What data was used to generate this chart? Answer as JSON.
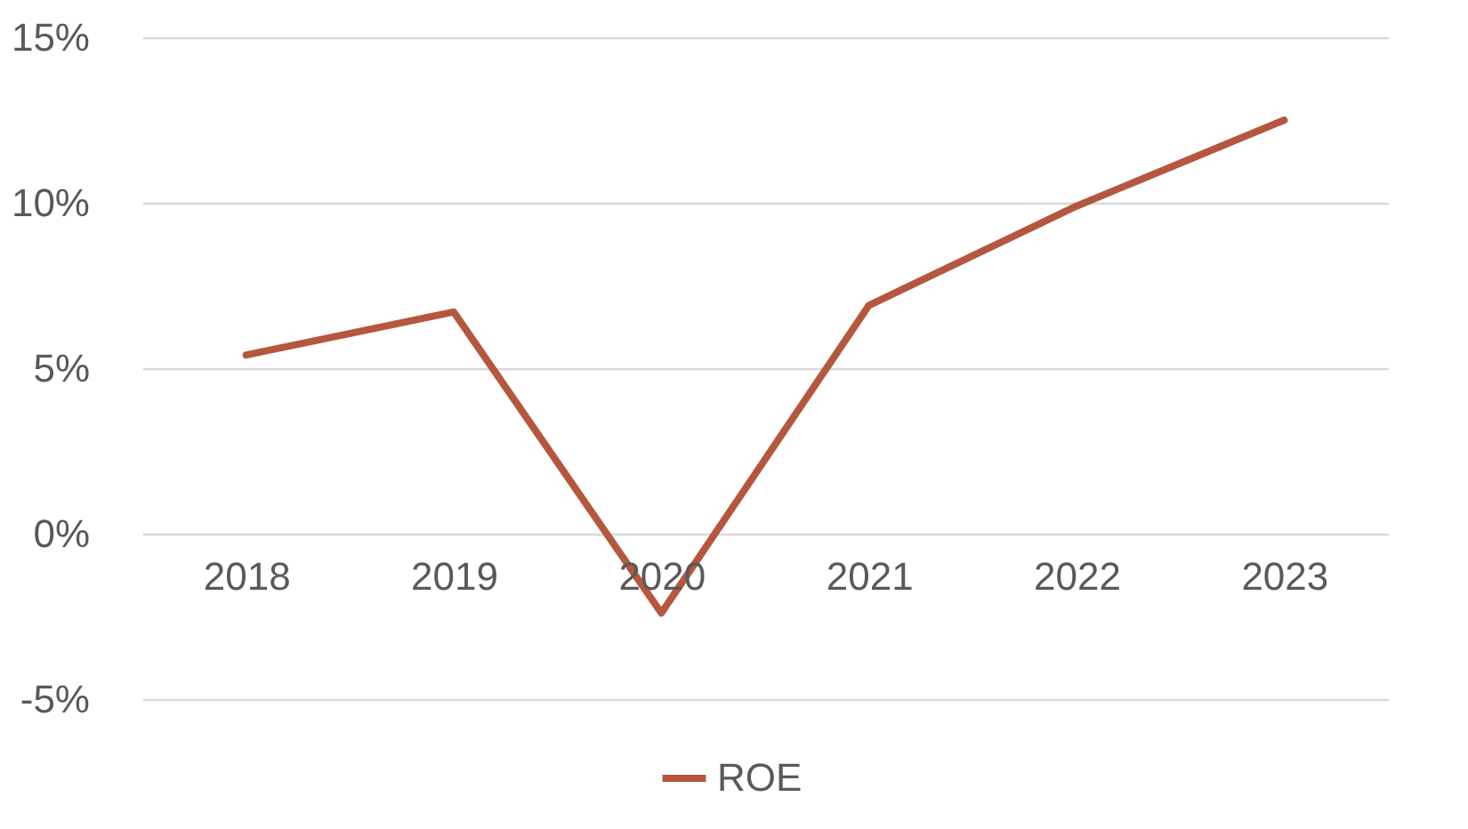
{
  "chart_data": {
    "type": "line",
    "categories": [
      "2018",
      "2019",
      "2020",
      "2021",
      "2022",
      "2023"
    ],
    "series": [
      {
        "name": "ROE",
        "color": "#b5573f",
        "values": [
          5.4,
          6.7,
          -2.4,
          6.9,
          9.9,
          12.5
        ]
      }
    ],
    "ylim": [
      -5,
      15
    ],
    "yticks": [
      {
        "value": -5,
        "label": "-5%"
      },
      {
        "value": 0,
        "label": "0%"
      },
      {
        "value": 5,
        "label": "5%"
      },
      {
        "value": 10,
        "label": "10%"
      },
      {
        "value": 15,
        "label": "15%"
      }
    ],
    "grid": "y",
    "legend": "bottom",
    "marker": "none",
    "line_style": "solid"
  }
}
